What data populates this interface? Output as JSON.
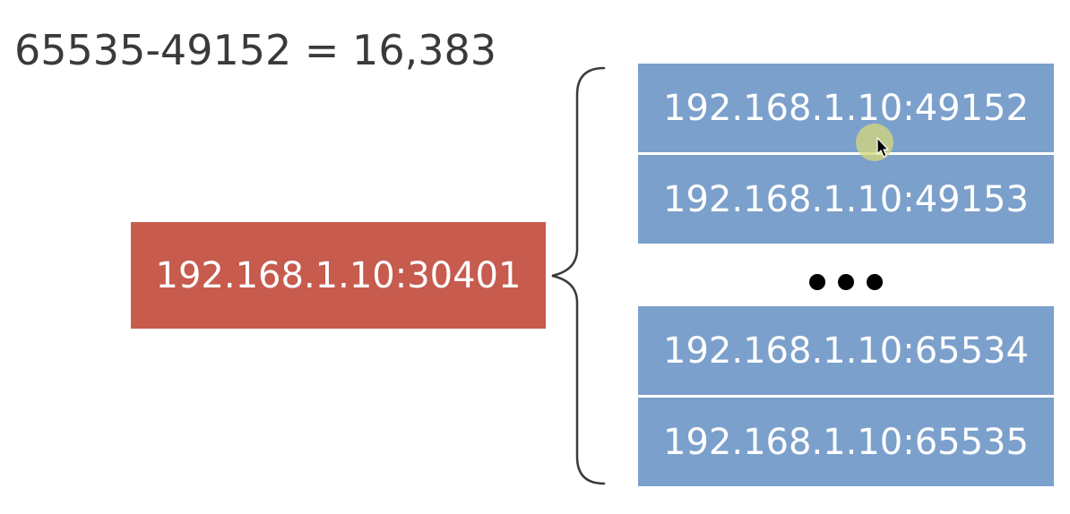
{
  "formula": {
    "text": "65535-49152 = 16,383"
  },
  "source": {
    "address": "192.168.1.10:30401"
  },
  "ports": {
    "top": [
      {
        "address": "192.168.1.10:49152"
      },
      {
        "address": "192.168.1.10:49153"
      }
    ],
    "bottom": [
      {
        "address": "192.168.1.10:65534"
      },
      {
        "address": "192.168.1.10:65535"
      }
    ]
  },
  "colors": {
    "source_box": "#c65b4e",
    "port_box": "#7ba0cc",
    "formula_text": "#3a3a3a",
    "brace": "#3a3a3a",
    "cursor_highlight": "#d7d87a"
  },
  "icons": {
    "ellipsis": "ellipsis-dots-icon",
    "cursor": "mouse-pointer-icon"
  }
}
